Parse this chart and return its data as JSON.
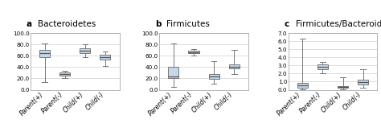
{
  "panels": [
    {
      "label": "a",
      "title": "Bacteroidetes",
      "ylim": [
        0,
        100
      ],
      "yticks": [
        0.0,
        20.0,
        40.0,
        60.0,
        80.0,
        100.0
      ],
      "yticklabels": [
        "0.0",
        "20.0",
        "40.0",
        "60.0",
        "80.0",
        "100.0"
      ],
      "boxes": [
        {
          "whislo": 13,
          "q1": 57,
          "med": 64,
          "q3": 70,
          "whishi": 82
        },
        {
          "whislo": 20,
          "q1": 25,
          "med": 27,
          "q3": 30,
          "whishi": 33
        },
        {
          "whislo": 57,
          "q1": 65,
          "med": 69,
          "q3": 73,
          "whishi": 80
        },
        {
          "whislo": 42,
          "q1": 53,
          "med": 57,
          "q3": 62,
          "whishi": 68
        }
      ]
    },
    {
      "label": "b",
      "title": "Firmicutes",
      "ylim": [
        0,
        100
      ],
      "yticks": [
        0.0,
        20.0,
        40.0,
        60.0,
        80.0,
        100.0
      ],
      "yticklabels": [
        "0.0",
        "20.0",
        "40.0",
        "60.0",
        "80.0",
        "100.0"
      ],
      "boxes": [
        {
          "whislo": 5,
          "q1": 20,
          "med": 24,
          "q3": 40,
          "whishi": 82
        },
        {
          "whislo": 61,
          "q1": 64,
          "med": 66,
          "q3": 69,
          "whishi": 72
        },
        {
          "whislo": 10,
          "q1": 19,
          "med": 24,
          "q3": 28,
          "whishi": 51
        },
        {
          "whislo": 27,
          "q1": 37,
          "med": 41,
          "q3": 44,
          "whishi": 70
        }
      ]
    },
    {
      "label": "c",
      "title": "Firmicutes/Bacteroidetes",
      "ylim": [
        0,
        7
      ],
      "yticks": [
        0.0,
        1.0,
        2.0,
        3.0,
        4.0,
        5.0,
        6.0,
        7.0
      ],
      "yticklabels": [
        "0.0",
        "1.0",
        "2.0",
        "3.0",
        "4.0",
        "5.0",
        "6.0",
        "7.0"
      ],
      "boxes": [
        {
          "whislo": 0.05,
          "q1": 0.25,
          "med": 0.55,
          "q3": 0.85,
          "whishi": 6.3
        },
        {
          "whislo": 2.0,
          "q1": 2.5,
          "med": 2.8,
          "q3": 3.1,
          "whishi": 3.4
        },
        {
          "whislo": 0.1,
          "q1": 0.22,
          "med": 0.32,
          "q3": 0.45,
          "whishi": 1.5
        },
        {
          "whislo": 0.25,
          "q1": 0.65,
          "med": 0.95,
          "q3": 1.2,
          "whishi": 2.5
        }
      ]
    }
  ],
  "categories": [
    "Parent(+)",
    "Parent(-)",
    "Child(+)",
    "Child(-)"
  ],
  "box_facecolor": "#c5d9ea",
  "box_edgecolor": "#777777",
  "median_color": "#555555",
  "whisker_color": "#777777",
  "cap_color": "#777777",
  "grid_color": "#d0d0d0",
  "background_color": "#ffffff",
  "title_fontsize": 7.5,
  "tick_fontsize": 5.2,
  "xlabel_fontsize": 5.5
}
